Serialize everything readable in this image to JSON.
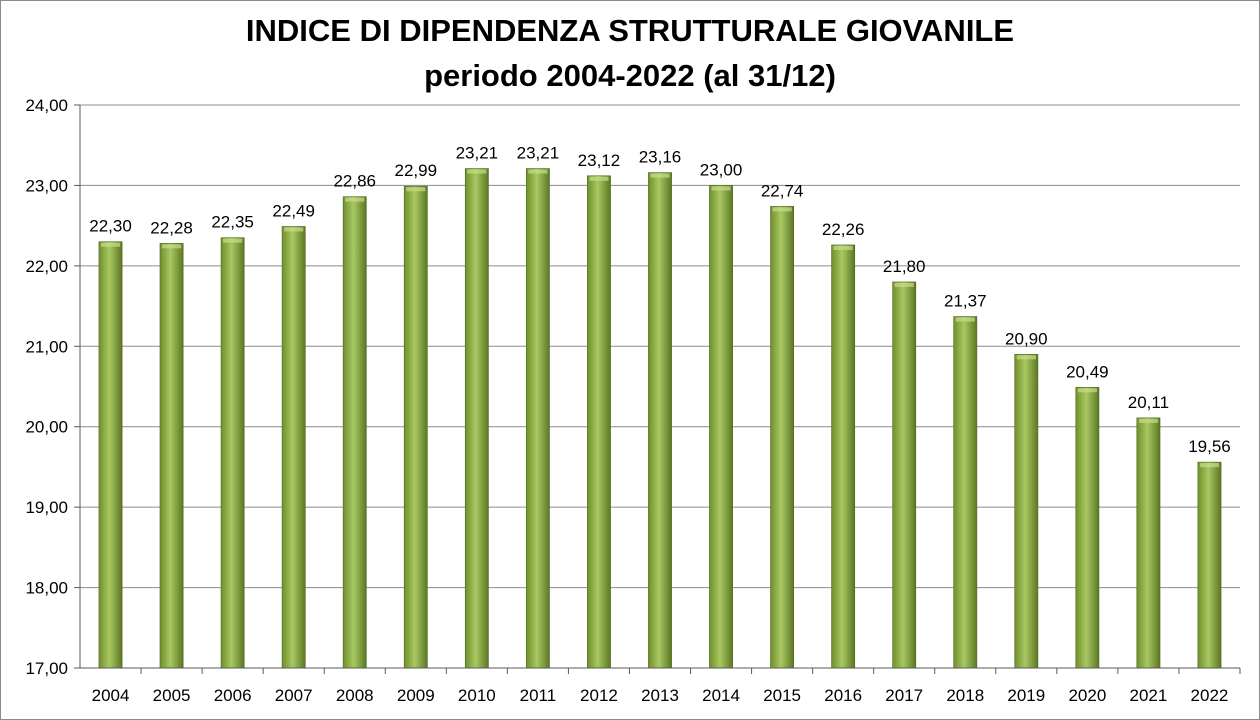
{
  "chart_data": {
    "type": "bar",
    "title_line1": "INDICE DI DIPENDENZA STRUTTURALE GIOVANILE",
    "title_line2": "periodo 2004-2022 (al 31/12)",
    "xlabel": "",
    "ylabel": "",
    "ylim": [
      17,
      24
    ],
    "y_ticks": [
      "17,00",
      "18,00",
      "19,00",
      "20,00",
      "21,00",
      "22,00",
      "23,00",
      "24,00"
    ],
    "grid": true,
    "legend": "none",
    "categories": [
      "2004",
      "2005",
      "2006",
      "2007",
      "2008",
      "2009",
      "2010",
      "2011",
      "2012",
      "2013",
      "2014",
      "2015",
      "2016",
      "2017",
      "2018",
      "2019",
      "2020",
      "2021",
      "2022"
    ],
    "values": [
      22.3,
      22.28,
      22.35,
      22.49,
      22.86,
      22.99,
      23.21,
      23.21,
      23.12,
      23.16,
      23.0,
      22.74,
      22.26,
      21.8,
      21.37,
      20.9,
      20.49,
      20.11,
      19.56
    ],
    "value_labels": [
      "22,30",
      "22,28",
      "22,35",
      "22,49",
      "22,86",
      "22,99",
      "23,21",
      "23,21",
      "23,12",
      "23,16",
      "23,00",
      "22,74",
      "22,26",
      "21,80",
      "21,37",
      "20,90",
      "20,49",
      "20,11",
      "19,56"
    ]
  },
  "colors": {
    "bar_light": "#a4c45c",
    "bar_dark": "#5e7a25",
    "grid": "#8c8c8c",
    "axis": "#595959"
  }
}
